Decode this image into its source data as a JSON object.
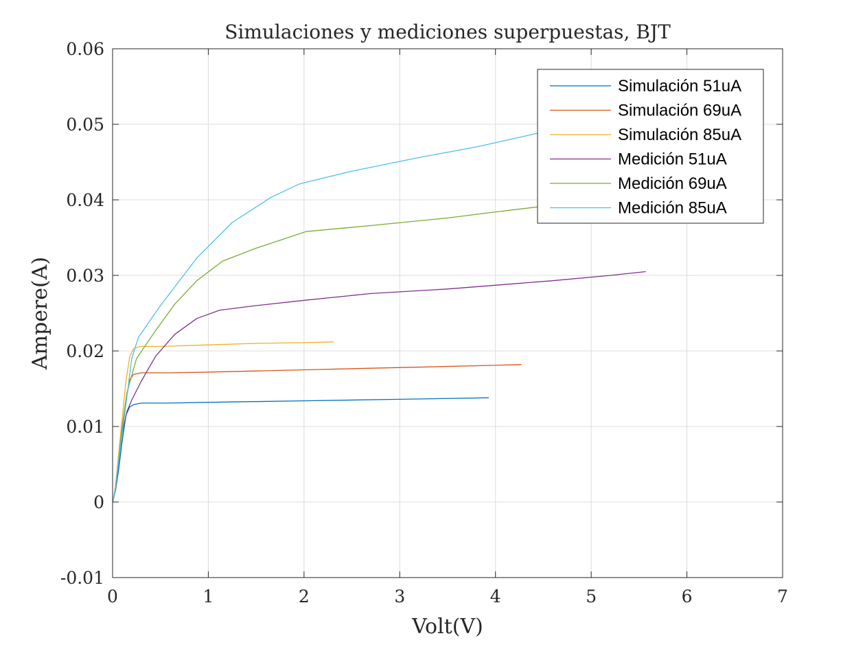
{
  "chart_data": {
    "type": "line",
    "title": "Simulaciones y mediciones superpuestas, BJT",
    "xlabel": "Volt(V)",
    "ylabel": "Ampere(A)",
    "xlim": [
      0,
      7
    ],
    "ylim": [
      -0.01,
      0.06
    ],
    "xticks": [
      0,
      1,
      2,
      3,
      4,
      5,
      6,
      7
    ],
    "xtick_labels": [
      "0",
      "1",
      "2",
      "3",
      "4",
      "5",
      "6",
      "7"
    ],
    "yticks": [
      -0.01,
      0,
      0.01,
      0.02,
      0.03,
      0.04,
      0.05,
      0.06
    ],
    "ytick_labels": [
      "-0.01",
      "0",
      "0.01",
      "0.02",
      "0.03",
      "0.04",
      "0.05",
      "0.06"
    ],
    "grid": true,
    "legend_position": "top-right",
    "series": [
      {
        "name": "Simulación 51uA",
        "color": "#0072BD",
        "x": [
          0,
          0.03,
          0.06,
          0.1,
          0.14,
          0.18,
          0.22,
          0.26,
          0.3,
          0.4,
          0.6,
          1.0,
          2.0,
          3.0,
          3.93
        ],
        "y": [
          0,
          0.0015,
          0.004,
          0.008,
          0.0115,
          0.0126,
          0.0129,
          0.013,
          0.0131,
          0.0131,
          0.0131,
          0.0132,
          0.0134,
          0.0136,
          0.0138
        ]
      },
      {
        "name": "Simulación 69uA",
        "color": "#D95319",
        "x": [
          0,
          0.03,
          0.06,
          0.1,
          0.14,
          0.18,
          0.22,
          0.26,
          0.3,
          0.4,
          0.6,
          1.0,
          2.0,
          3.0,
          4.0,
          4.27
        ],
        "y": [
          0,
          0.0015,
          0.005,
          0.0095,
          0.0135,
          0.0162,
          0.0169,
          0.017,
          0.0171,
          0.0171,
          0.0171,
          0.0172,
          0.0175,
          0.0178,
          0.0181,
          0.0182
        ]
      },
      {
        "name": "Simulación 85uA",
        "color": "#EDB120",
        "x": [
          0,
          0.03,
          0.06,
          0.1,
          0.14,
          0.18,
          0.22,
          0.26,
          0.3,
          0.5,
          1.0,
          1.5,
          2.0,
          2.31
        ],
        "y": [
          0,
          0.002,
          0.006,
          0.011,
          0.016,
          0.0193,
          0.0203,
          0.0205,
          0.0206,
          0.0206,
          0.0208,
          0.021,
          0.0211,
          0.0212
        ]
      },
      {
        "name": "Medición 51uA",
        "color": "#7E2F8E",
        "x": [
          0,
          0.02,
          0.05,
          0.1,
          0.15,
          0.2,
          0.3,
          0.45,
          0.65,
          0.88,
          1.12,
          1.5,
          2.0,
          2.7,
          3.5,
          4.0,
          4.6,
          5.2,
          5.57
        ],
        "y": [
          0,
          0.001,
          0.004,
          0.009,
          0.012,
          0.0135,
          0.016,
          0.0193,
          0.0222,
          0.0243,
          0.0254,
          0.026,
          0.0267,
          0.0276,
          0.0282,
          0.0287,
          0.0293,
          0.03,
          0.0305
        ]
      },
      {
        "name": "Medición 69uA",
        "color": "#77AC30",
        "x": [
          0,
          0.02,
          0.05,
          0.1,
          0.15,
          0.25,
          0.45,
          0.65,
          0.88,
          1.15,
          1.5,
          2.02,
          2.7,
          3.5,
          4.0,
          4.6,
          5.2,
          5.57
        ],
        "y": [
          0,
          0.001,
          0.004,
          0.01,
          0.0145,
          0.019,
          0.0227,
          0.0262,
          0.0293,
          0.0319,
          0.0336,
          0.0358,
          0.0366,
          0.0376,
          0.0384,
          0.0393,
          0.0403,
          0.041
        ]
      },
      {
        "name": "Medición 85uA",
        "color": "#4DBEEE",
        "x": [
          0,
          0.02,
          0.05,
          0.1,
          0.15,
          0.2,
          0.27,
          0.5,
          0.88,
          1.25,
          1.65,
          1.95,
          2.5,
          3.2,
          3.8,
          4.4,
          5.0,
          5.57
        ],
        "y": [
          0,
          0.001,
          0.004,
          0.009,
          0.014,
          0.019,
          0.0218,
          0.026,
          0.0323,
          0.037,
          0.0403,
          0.0421,
          0.0438,
          0.0456,
          0.047,
          0.0487,
          0.0505,
          0.052
        ]
      }
    ]
  }
}
